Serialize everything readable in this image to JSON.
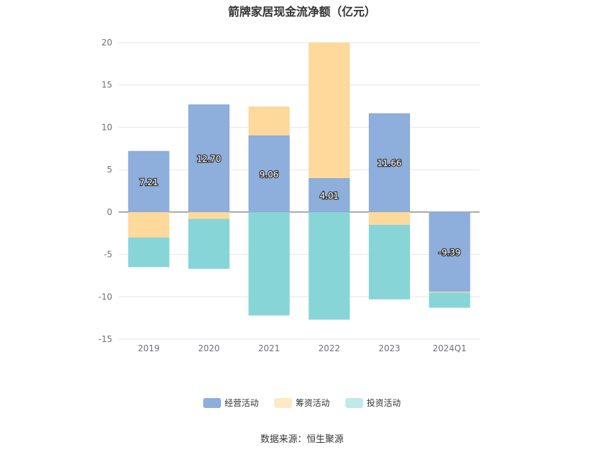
{
  "chart_data": {
    "type": "bar",
    "stacked": true,
    "title": "箭牌家居现金流净额（亿元）",
    "categories": [
      "2019",
      "2020",
      "2021",
      "2022",
      "2023",
      "2024Q1"
    ],
    "ylim": [
      -15,
      20
    ],
    "yticks": [
      -15,
      -10,
      -5,
      0,
      5,
      10,
      15,
      20
    ],
    "grid": true,
    "legend_position": "bottom",
    "series": [
      {
        "name": "经营活动",
        "color": "#8eaedb",
        "values": [
          7.21,
          12.7,
          9.06,
          4.01,
          11.66,
          -9.39
        ],
        "labels": [
          "7.21",
          "12.70",
          "9.06",
          "4.01",
          "11.66",
          "-9.39"
        ]
      },
      {
        "name": "筹资活动",
        "color": "#fdd99b",
        "values": [
          -3.0,
          -0.8,
          3.4,
          16.0,
          -1.5,
          -0.1
        ]
      },
      {
        "name": "投资活动",
        "color": "#88d5d8",
        "values": [
          -3.5,
          -5.9,
          -12.2,
          -12.7,
          -8.8,
          -1.8
        ]
      }
    ]
  },
  "source": "数据来源：恒生聚源"
}
